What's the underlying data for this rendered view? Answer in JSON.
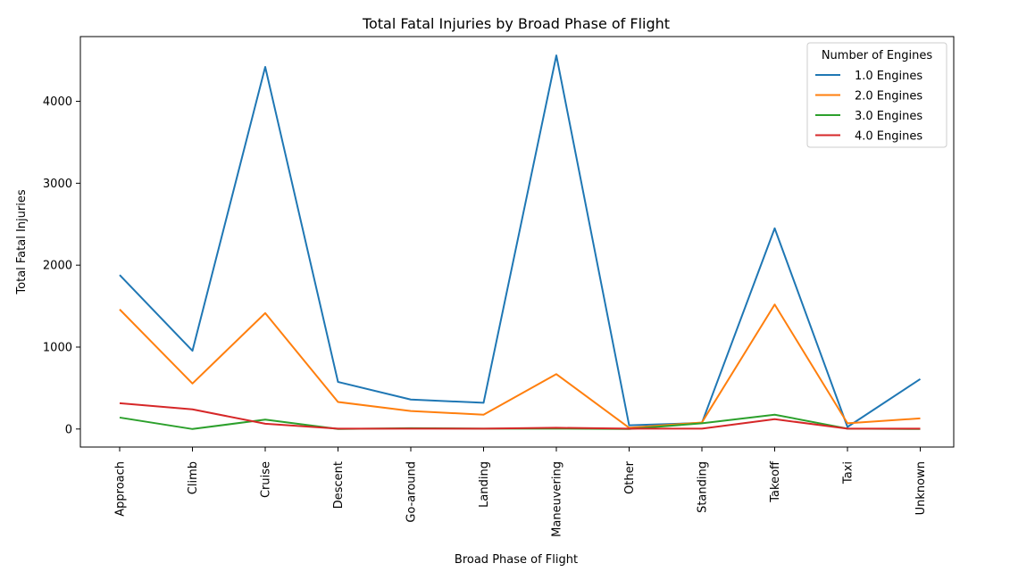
{
  "chart_data": {
    "type": "line",
    "title": "Total Fatal Injuries by Broad Phase of Flight",
    "xlabel": "Broad Phase of Flight",
    "ylabel": "Total Fatal Injuries",
    "categories": [
      "Approach",
      "Climb",
      "Cruise",
      "Descent",
      "Go-around",
      "Landing",
      "Maneuvering",
      "Other",
      "Standing",
      "Takeoff",
      "Taxi",
      "Unknown"
    ],
    "yticks": [
      0,
      1000,
      2000,
      3000,
      4000
    ],
    "ylim": [
      -220,
      4790
    ],
    "grid": false,
    "legend": {
      "title": "Number of Engines",
      "position": "top-right"
    },
    "series": [
      {
        "name": "1.0 Engines",
        "color": "#1f77b4",
        "values": [
          1880,
          955,
          4420,
          575,
          360,
          320,
          4560,
          45,
          75,
          2450,
          25,
          610
        ]
      },
      {
        "name": "2.0 Engines",
        "color": "#ff7f0e",
        "values": [
          1460,
          555,
          1415,
          330,
          220,
          175,
          670,
          15,
          80,
          1520,
          70,
          130
        ]
      },
      {
        "name": "3.0 Engines",
        "color": "#2ca02c",
        "values": [
          140,
          0,
          115,
          0,
          10,
          5,
          5,
          0,
          70,
          175,
          5,
          0
        ]
      },
      {
        "name": "4.0 Engines",
        "color": "#d62728",
        "values": [
          315,
          240,
          65,
          5,
          5,
          5,
          15,
          5,
          5,
          120,
          5,
          5
        ]
      }
    ]
  }
}
